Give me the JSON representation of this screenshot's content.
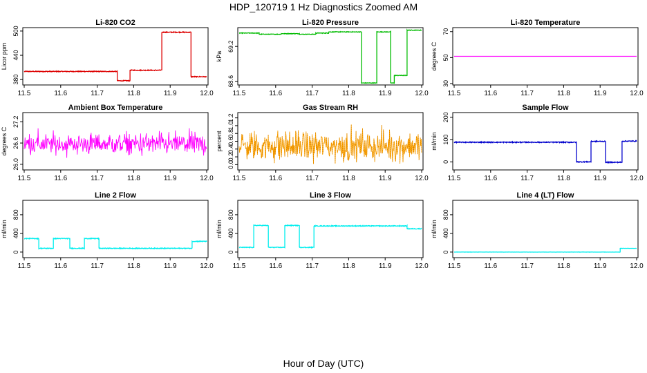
{
  "main_title": "HDP_120719  1 Hz Diagnostics Zoomed AM",
  "x_axis_label": "Hour of Day (UTC)",
  "chart_data": [
    {
      "type": "line",
      "title": "Li-820 CO2",
      "ylabel": "Licor ppm",
      "color": "#dd0000",
      "xlim": [
        11.5,
        12.0
      ],
      "ylim": [
        370,
        505
      ],
      "x_ticks": [
        "11.5",
        "11.6",
        "11.7",
        "11.8",
        "11.9",
        "12.0"
      ],
      "y_ticks": [
        380,
        440,
        500
      ],
      "y_tick_labels": [
        "380",
        "440",
        "500"
      ],
      "noise": 1,
      "segments": [
        {
          "x0": 11.5,
          "x1": 11.755,
          "y": 400
        },
        {
          "x0": 11.755,
          "x1": 11.79,
          "y": 377
        },
        {
          "x0": 11.79,
          "x1": 11.877,
          "y": 403
        },
        {
          "x0": 11.877,
          "x1": 11.957,
          "y": 497
        },
        {
          "x0": 11.957,
          "x1": 12.0,
          "y": 387
        }
      ]
    },
    {
      "type": "line",
      "title": "Li-820 Pressure",
      "ylabel": "kPa",
      "color": "#00bb00",
      "xlim": [
        11.5,
        12.0
      ],
      "ylim": [
        69.56,
        69.5
      ],
      "x_ticks": [
        "11.5",
        "11.6",
        "11.7",
        "11.8",
        "11.9",
        "12.0"
      ],
      "y_ticks": [
        68.6,
        69.2
      ],
      "y_tick_labels": [
        "68.6",
        "69.2"
      ],
      "ylim_actual": [
        68.56,
        69.5
      ],
      "noise": 0.005,
      "segments": [
        {
          "x0": 11.5,
          "x1": 11.555,
          "y": 69.43
        },
        {
          "x0": 11.555,
          "x1": 11.615,
          "y": 69.41
        },
        {
          "x0": 11.615,
          "x1": 11.665,
          "y": 69.42
        },
        {
          "x0": 11.665,
          "x1": 11.71,
          "y": 69.41
        },
        {
          "x0": 11.71,
          "x1": 11.745,
          "y": 69.43
        },
        {
          "x0": 11.745,
          "x1": 11.835,
          "y": 69.45
        },
        {
          "x0": 11.835,
          "x1": 11.877,
          "y": 68.57
        },
        {
          "x0": 11.877,
          "x1": 11.915,
          "y": 69.45
        },
        {
          "x0": 11.915,
          "x1": 11.925,
          "y": 68.57
        },
        {
          "x0": 11.925,
          "x1": 11.96,
          "y": 68.7
        },
        {
          "x0": 11.96,
          "x1": 12.0,
          "y": 69.48
        }
      ]
    },
    {
      "type": "line",
      "title": "Li-820 Temperature",
      "ylabel": "degrees C",
      "color": "#ff00ff",
      "xlim": [
        11.5,
        12.0
      ],
      "ylim": [
        30,
        72
      ],
      "x_ticks": [
        "11.5",
        "11.6",
        "11.7",
        "11.8",
        "11.9",
        "12.0"
      ],
      "y_ticks": [
        30,
        50,
        70
      ],
      "y_tick_labels": [
        "30",
        "50",
        "70"
      ],
      "noise": 0,
      "segments": [
        {
          "x0": 11.5,
          "x1": 12.0,
          "y": 51
        }
      ]
    },
    {
      "type": "line",
      "title": "Ambient Box Temperature",
      "ylabel": "degrees C",
      "color": "#ff00ff",
      "xlim": [
        11.5,
        12.0
      ],
      "ylim": [
        25.88,
        27.42
      ],
      "x_ticks": [
        "11.5",
        "11.6",
        "11.7",
        "11.8",
        "11.9",
        "12.0"
      ],
      "y_ticks": [
        26.0,
        26.6,
        27.2
      ],
      "y_tick_labels": [
        "26.0",
        "26.6",
        "27.2"
      ],
      "noise_band": [
        26.15,
        27.0
      ],
      "noise_center": 26.55,
      "noise_color": "#ff00ff"
    },
    {
      "type": "line",
      "title": "Gas Stream RH",
      "ylabel": "percent",
      "color": "#ffa500",
      "xlim": [
        11.5,
        12.0
      ],
      "ylim": [
        -0.1,
        1.3
      ],
      "x_ticks": [
        "11.5",
        "11.6",
        "11.7",
        "11.8",
        "11.9",
        "12.0"
      ],
      "y_ticks": [
        0.0,
        0.2,
        0.4,
        0.6,
        0.8,
        1.0,
        1.2
      ],
      "y_tick_labels": [
        "0.0",
        "0.2",
        "0.4",
        "0.6",
        "0.8",
        "1.0",
        "1.2"
      ],
      "noise_band": [
        -0.05,
        1.0
      ],
      "noise_center": 0.35,
      "noise_color": "#ffa500"
    },
    {
      "type": "line",
      "title": "Sample Flow",
      "ylabel": "ml/min",
      "color": "#0000cc",
      "xlim": [
        11.5,
        12.0
      ],
      "ylim": [
        -30,
        215
      ],
      "x_ticks": [
        "11.5",
        "11.6",
        "11.7",
        "11.8",
        "11.9",
        "12.0"
      ],
      "y_ticks": [
        0,
        100,
        200
      ],
      "y_tick_labels": [
        "0",
        "100",
        "200"
      ],
      "noise": 2,
      "segments": [
        {
          "x0": 11.5,
          "x1": 11.835,
          "y": 88
        },
        {
          "x0": 11.835,
          "x1": 11.875,
          "y": 0
        },
        {
          "x0": 11.875,
          "x1": 11.915,
          "y": 92
        },
        {
          "x0": 11.915,
          "x1": 11.96,
          "y": -2
        },
        {
          "x0": 11.96,
          "x1": 12.0,
          "y": 93
        }
      ]
    },
    {
      "type": "line",
      "title": "Line 2 Flow",
      "ylabel": "ml/min",
      "color": "#00eeee",
      "xlim": [
        11.5,
        12.0
      ],
      "ylim": [
        -90,
        1080
      ],
      "x_ticks": [
        "11.5",
        "11.6",
        "11.7",
        "11.8",
        "11.9",
        "12.0"
      ],
      "y_ticks": [
        0,
        400,
        800
      ],
      "y_tick_labels": [
        "0",
        "400",
        "800"
      ],
      "noise": 8,
      "segments": [
        {
          "x0": 11.5,
          "x1": 11.54,
          "y": 290
        },
        {
          "x0": 11.54,
          "x1": 11.58,
          "y": 80
        },
        {
          "x0": 11.58,
          "x1": 11.625,
          "y": 290
        },
        {
          "x0": 11.625,
          "x1": 11.665,
          "y": 80
        },
        {
          "x0": 11.665,
          "x1": 11.705,
          "y": 290
        },
        {
          "x0": 11.705,
          "x1": 11.96,
          "y": 80
        },
        {
          "x0": 11.96,
          "x1": 12.0,
          "y": 230
        }
      ]
    },
    {
      "type": "line",
      "title": "Line 3 Flow",
      "ylabel": "ml/min",
      "color": "#00eeee",
      "xlim": [
        11.5,
        12.0
      ],
      "ylim": [
        -90,
        1080
      ],
      "x_ticks": [
        "11.5",
        "11.6",
        "11.7",
        "11.8",
        "11.9",
        "12.0"
      ],
      "y_ticks": [
        0,
        400,
        800
      ],
      "y_tick_labels": [
        "0",
        "400",
        "800"
      ],
      "noise": 8,
      "segments": [
        {
          "x0": 11.5,
          "x1": 11.54,
          "y": 100
        },
        {
          "x0": 11.54,
          "x1": 11.58,
          "y": 570
        },
        {
          "x0": 11.58,
          "x1": 11.625,
          "y": 100
        },
        {
          "x0": 11.625,
          "x1": 11.665,
          "y": 570
        },
        {
          "x0": 11.665,
          "x1": 11.705,
          "y": 100
        },
        {
          "x0": 11.705,
          "x1": 11.96,
          "y": 560
        },
        {
          "x0": 11.96,
          "x1": 12.0,
          "y": 500
        }
      ]
    },
    {
      "type": "line",
      "title": "Line 4 (LT) Flow",
      "ylabel": "ml/min",
      "color": "#00eeee",
      "xlim": [
        11.5,
        12.0
      ],
      "ylim": [
        -90,
        1080
      ],
      "x_ticks": [
        "11.5",
        "11.6",
        "11.7",
        "11.8",
        "11.9",
        "12.0"
      ],
      "y_ticks": [
        0,
        400,
        800
      ],
      "y_tick_labels": [
        "0",
        "400",
        "800"
      ],
      "noise": 2,
      "segments": [
        {
          "x0": 11.5,
          "x1": 11.955,
          "y": 0
        },
        {
          "x0": 11.955,
          "x1": 12.0,
          "y": 80
        }
      ]
    }
  ]
}
